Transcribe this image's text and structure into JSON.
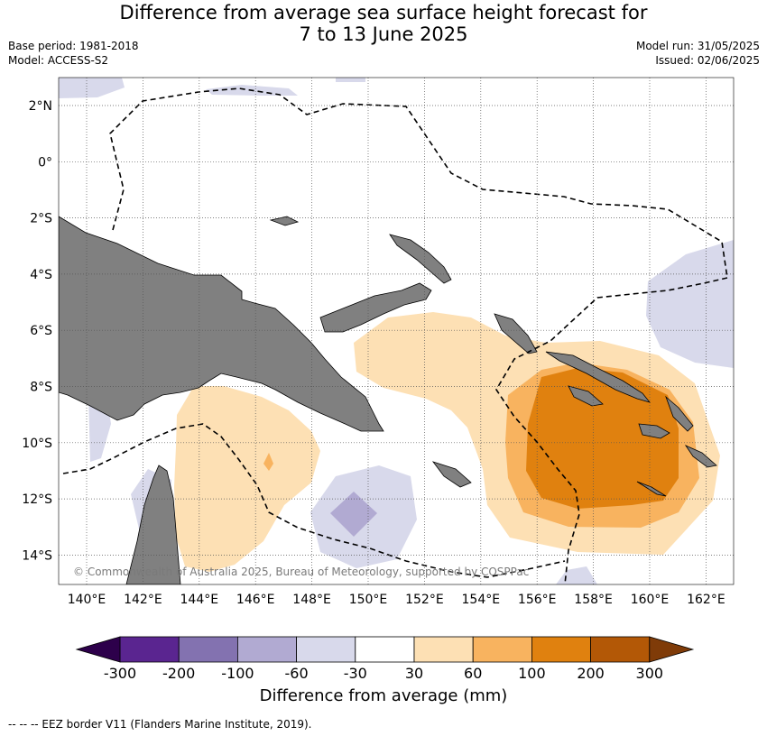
{
  "header": {
    "title_line1": "Difference from average sea surface height forecast for",
    "title_line2": "7 to 13 June 2025",
    "base_period": "Base period: 1981-2018",
    "model": "Model: ACCESS-S2",
    "model_run": "Model run: 31/05/2025",
    "issued": "Issued: 02/06/2025"
  },
  "map": {
    "lat_labels": [
      "2°N",
      "0°",
      "2°S",
      "4°S",
      "6°S",
      "8°S",
      "10°S",
      "12°S",
      "14°S"
    ],
    "lon_labels": [
      "140°E",
      "142°E",
      "144°E",
      "146°E",
      "148°E",
      "150°E",
      "152°E",
      "154°E",
      "156°E",
      "158°E",
      "160°E",
      "162°E"
    ],
    "copyright": "© Commonwealth of Australia 2025, Bureau of Meteorology, supported by COSPPac",
    "colors": {
      "land": "#808080",
      "ocean": "#ffffff",
      "grid": "#555555"
    }
  },
  "colorbar": {
    "title": "Difference from average (mm)",
    "tick_labels": [
      "-300",
      "-200",
      "-100",
      "-60",
      "-30",
      "30",
      "60",
      "100",
      "200",
      "300"
    ],
    "colors": [
      "#5a2590",
      "#8372b0",
      "#b1aad2",
      "#d8d9eb",
      "#ffffff",
      "#fde0b4",
      "#f8b35f",
      "#e0810f",
      "#b35806"
    ],
    "under_color": "#2d004b",
    "over_color": "#7f3b08"
  },
  "footer": {
    "legend_text": "--  --  -- EEZ border V11 (Flanders Marine Institute, 2019)."
  }
}
